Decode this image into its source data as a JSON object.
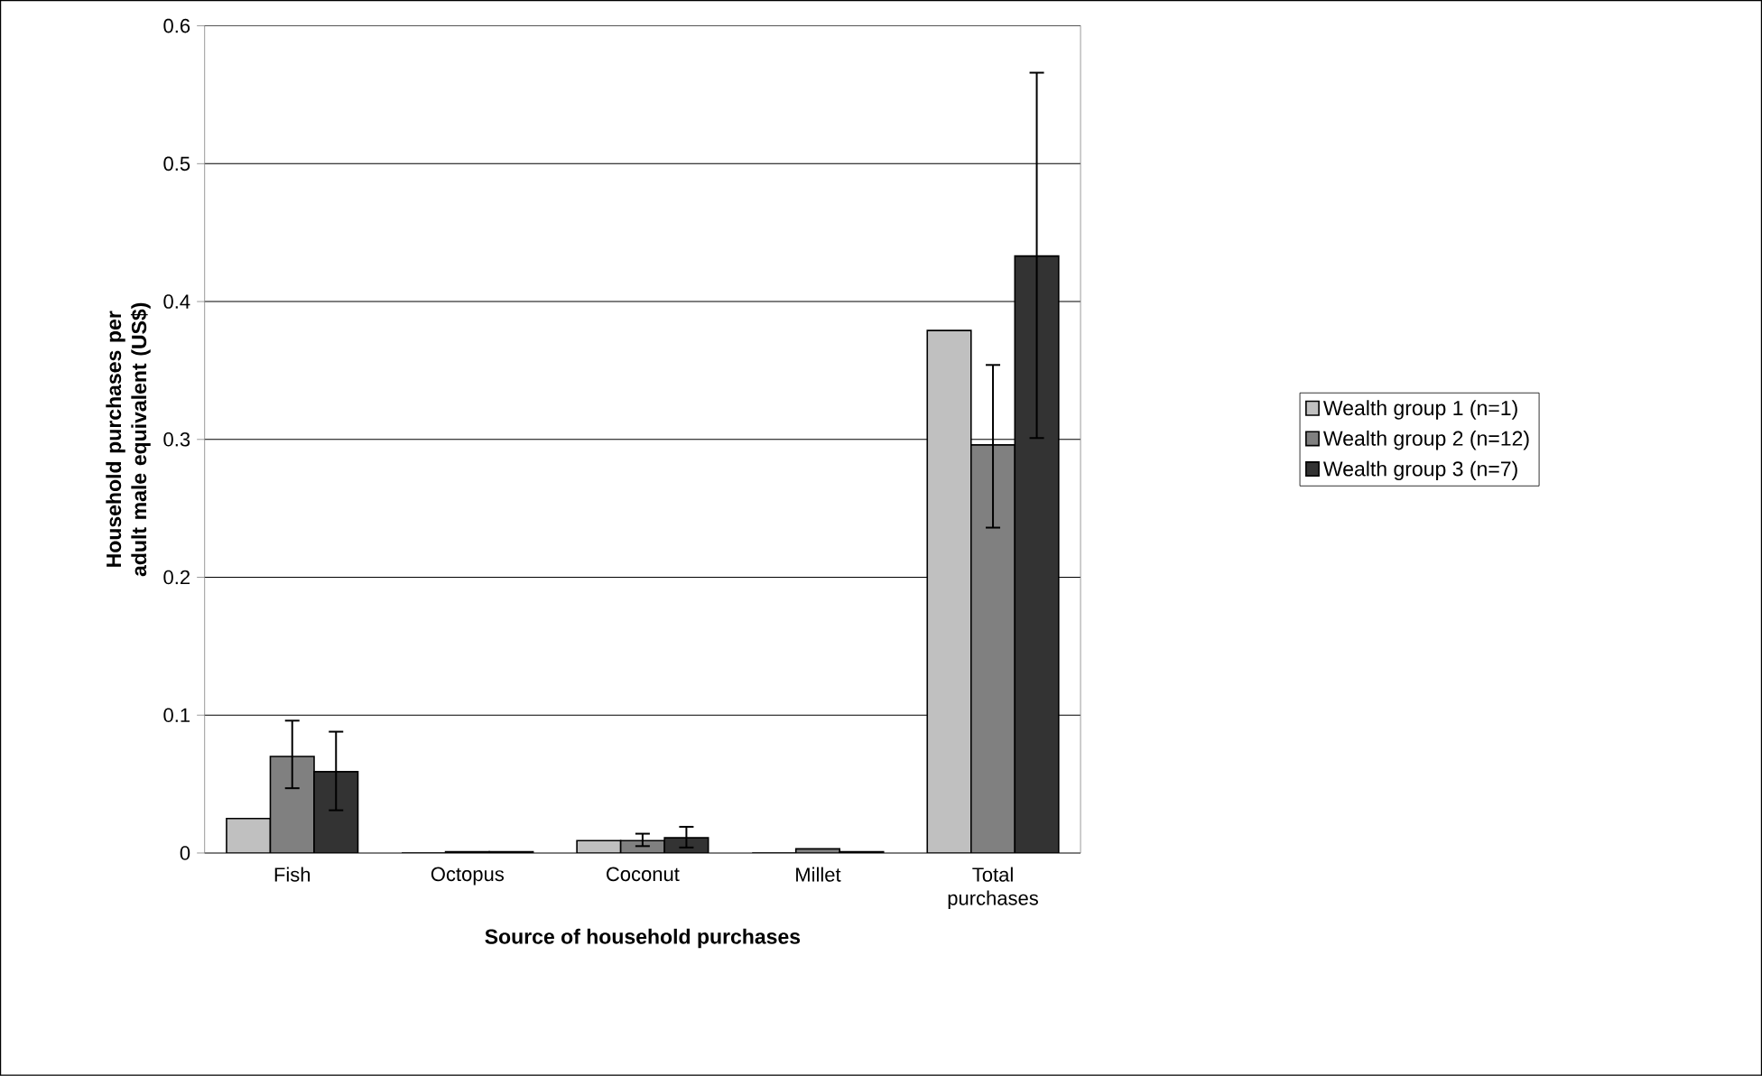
{
  "chart_data": {
    "type": "bar",
    "xlabel": "Source of household purchases",
    "ylabel": "Household purchases per adult male equivalent (US$)",
    "categories": [
      "Fish",
      "Octopus",
      "Coconut",
      "Millet",
      "Total purchases"
    ],
    "series": [
      {
        "name": "Wealth group 1 (n=1)",
        "color": "#c0c0c0",
        "values": [
          0.025,
          0,
          0.009,
          0,
          0.379
        ]
      },
      {
        "name": "Wealth group 2 (n=12)",
        "color": "#808080",
        "values": [
          0.07,
          0.001,
          0.009,
          0.003,
          0.296
        ],
        "errors": [
          [
            0.047,
            0.096
          ],
          null,
          [
            0.005,
            0.014
          ],
          null,
          [
            0.236,
            0.354
          ]
        ]
      },
      {
        "name": "Wealth group 3 (n=7)",
        "color": "#333333",
        "values": [
          0.059,
          0.001,
          0.011,
          0.001,
          0.433
        ],
        "errors": [
          [
            0.031,
            0.088
          ],
          null,
          [
            0.004,
            0.019
          ],
          null,
          [
            0.301,
            0.566
          ]
        ]
      }
    ],
    "ylim": [
      0,
      0.6
    ],
    "yticks": [
      0,
      0.1,
      0.2,
      0.3,
      0.4,
      0.5,
      0.6
    ],
    "grid": "y",
    "legend": "right"
  }
}
